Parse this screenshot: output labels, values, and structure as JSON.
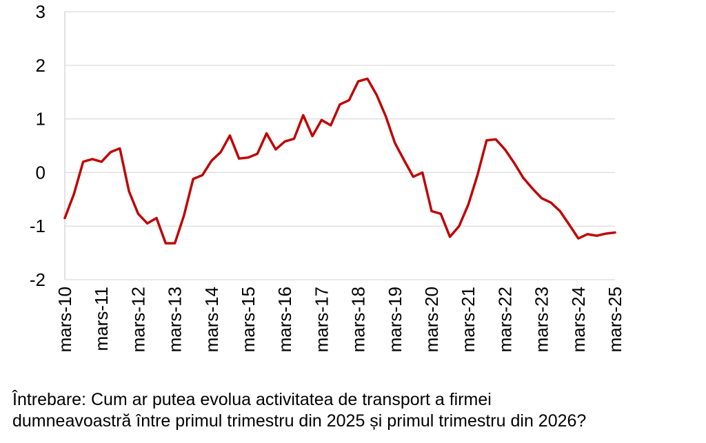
{
  "chart_data": {
    "type": "line",
    "title": "",
    "xlabel": "",
    "ylabel": "",
    "ylim": [
      -2,
      3
    ],
    "yticks": [
      -2,
      -1,
      0,
      1,
      2,
      3
    ],
    "grid": true,
    "legend": "none",
    "categories": [
      "mars-10",
      "mars-11",
      "mars-12",
      "mars-13",
      "mars-14",
      "mars-15",
      "mars-16",
      "mars-17",
      "mars-18",
      "mars-19",
      "mars-20",
      "mars-21",
      "mars-22",
      "mars-23",
      "mars-24",
      "mars-25"
    ],
    "series": [
      {
        "color": "#c00000",
        "x": [
          2010.0,
          2010.25,
          2010.5,
          2010.75,
          2011.0,
          2011.25,
          2011.5,
          2011.75,
          2012.0,
          2012.25,
          2012.5,
          2012.75,
          2013.0,
          2013.25,
          2013.5,
          2013.75,
          2014.0,
          2014.25,
          2014.5,
          2014.75,
          2015.0,
          2015.25,
          2015.5,
          2015.75,
          2016.0,
          2016.25,
          2016.5,
          2016.75,
          2017.0,
          2017.25,
          2017.5,
          2017.75,
          2018.0,
          2018.25,
          2018.5,
          2018.75,
          2019.0,
          2019.25,
          2019.5,
          2019.75,
          2020.0,
          2020.25,
          2020.5,
          2020.75,
          2021.0,
          2021.25,
          2021.5,
          2021.75,
          2022.0,
          2022.25,
          2022.5,
          2022.75,
          2023.0,
          2023.25,
          2023.5,
          2023.75,
          2024.0,
          2024.25,
          2024.5,
          2024.75,
          2025.0
        ],
        "values": [
          -0.85,
          -0.4,
          0.2,
          0.25,
          0.2,
          0.38,
          0.45,
          -0.35,
          -0.77,
          -0.95,
          -0.85,
          -1.32,
          -1.32,
          -0.8,
          -0.12,
          -0.05,
          0.22,
          0.38,
          0.69,
          0.26,
          0.28,
          0.35,
          0.73,
          0.43,
          0.58,
          0.63,
          1.07,
          0.68,
          0.98,
          0.88,
          1.27,
          1.35,
          1.7,
          1.75,
          1.45,
          1.05,
          0.55,
          0.23,
          -0.08,
          0.0,
          -0.72,
          -0.77,
          -1.2,
          -1.0,
          -0.6,
          -0.05,
          0.6,
          0.62,
          0.43,
          0.18,
          -0.1,
          -0.3,
          -0.48,
          -0.56,
          -0.72,
          -0.97,
          -1.23,
          -1.15,
          -1.18,
          -1.14,
          -1.12
        ]
      }
    ]
  },
  "question": {
    "line1": "Întrebare: Cum ar putea evolua activitatea de transport a firmei",
    "line2": "dumneavoastră între primul trimestru din 2025 și primul trimestru din 2026?"
  }
}
